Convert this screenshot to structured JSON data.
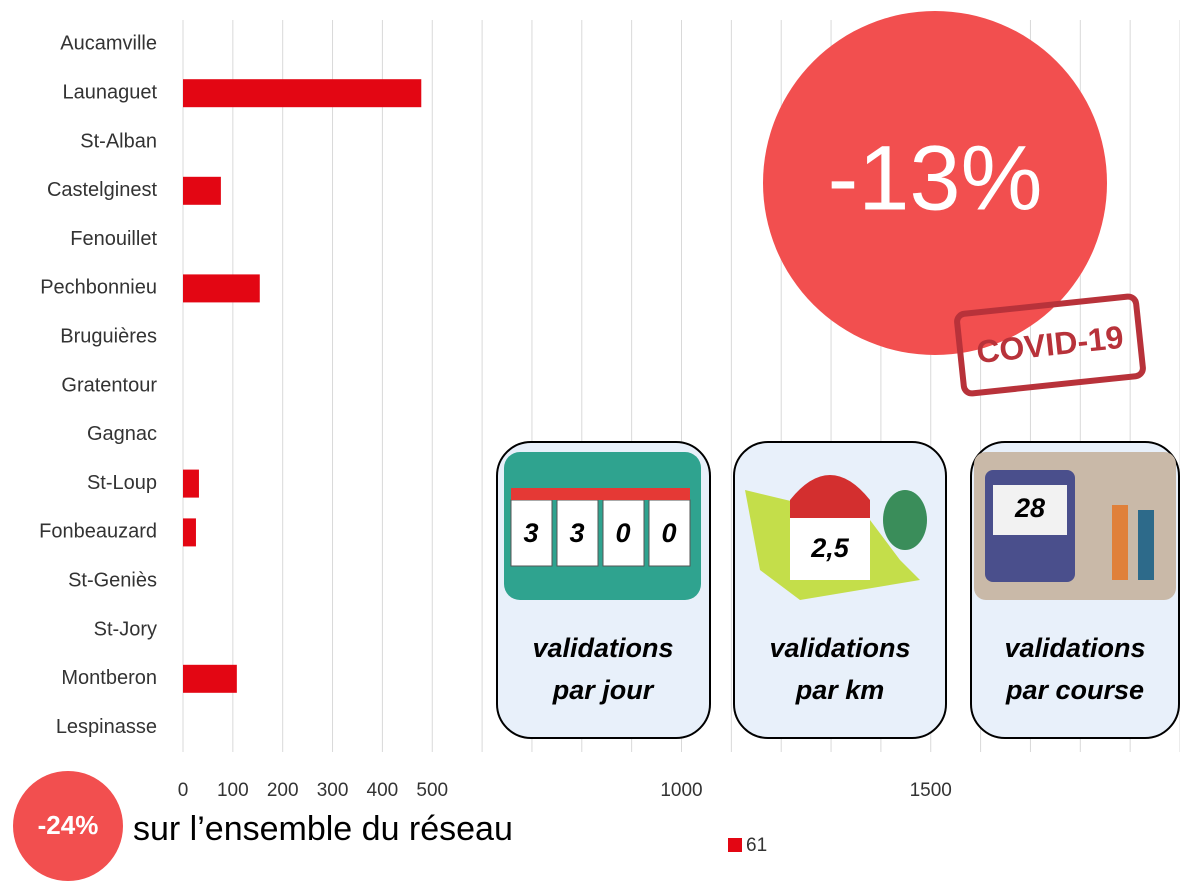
{
  "chart_data": {
    "type": "bar",
    "orientation": "horizontal",
    "categories": [
      "Aucamville",
      "Launaguet",
      "St-Alban",
      "Castelginest",
      "Fenouillet",
      "Pechbonnieu",
      "Bruguières",
      "Gratentour",
      "Gagnac",
      "St-Loup",
      "Fonbeauzard",
      "St-Geniès",
      "St-Jory",
      "Montberon",
      "Lespinasse"
    ],
    "series": [
      {
        "name": "61",
        "color": "#e30613",
        "values": [
          0,
          478,
          0,
          76,
          0,
          154,
          0,
          0,
          0,
          32,
          26,
          0,
          0,
          108,
          0
        ]
      }
    ],
    "xlim": [
      0,
      2000
    ],
    "xticks": [
      0,
      100,
      200,
      300,
      400,
      500,
      1000,
      1500
    ],
    "grid": true,
    "minor_grid_step": 100,
    "legend": "bottom"
  },
  "badge": "-13%",
  "stamp": "COVID-19",
  "cards": [
    {
      "figure": [
        "3",
        "3",
        "0",
        "0"
      ],
      "caption": [
        "validations",
        "par jour"
      ]
    },
    {
      "figure": [
        "2,5"
      ],
      "caption": [
        "validations",
        "par km"
      ]
    },
    {
      "figure": [
        "28"
      ],
      "caption": [
        "validations",
        "par course"
      ]
    }
  ],
  "footer": {
    "badge": "-24%",
    "text": "sur l’ensemble du réseau"
  }
}
